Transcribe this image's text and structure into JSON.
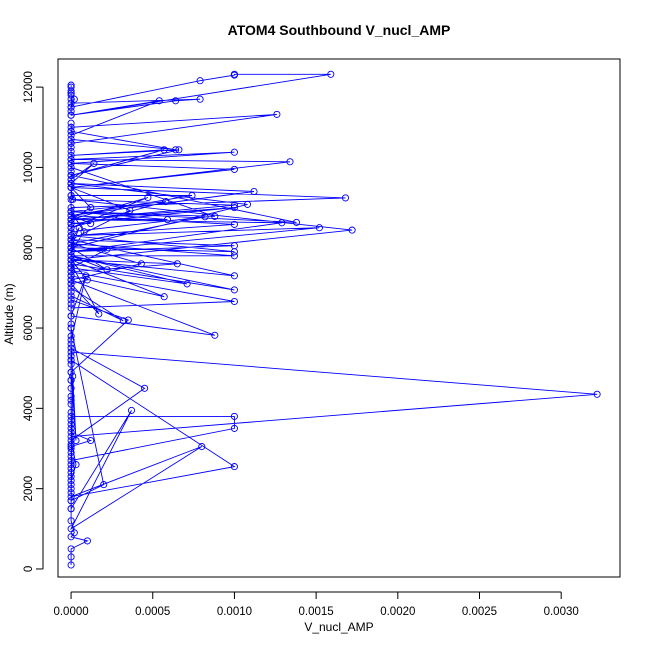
{
  "chart_data": {
    "type": "line",
    "title": "ATOM4 Southbound V_nucl_AMP",
    "xlabel": "V_nucl_AMP",
    "ylabel": "Altitude (m)",
    "xlim": [
      -8e-05,
      0.00336
    ],
    "ylim": [
      -200,
      12700
    ],
    "xticks": [
      0.0,
      0.0005,
      0.001,
      0.0015,
      0.002,
      0.0025,
      0.003
    ],
    "xtick_labels": [
      "0.0000",
      "0.0005",
      "0.0010",
      "0.0015",
      "0.0020",
      "0.0025",
      "0.0030"
    ],
    "yticks": [
      0,
      2000,
      4000,
      6000,
      8000,
      10000,
      12000
    ],
    "ytick_labels": [
      "0",
      "2000",
      "4000",
      "6000",
      "8000",
      "10000",
      "12000"
    ],
    "grid": false,
    "legend": "none",
    "series_color": "#0000ff",
    "series": [
      {
        "x": [
          0.0,
          0.0,
          0.0,
          0.0001,
          0.0,
          2e-05,
          0.0,
          0.0,
          0.0,
          0.0,
          0.0,
          0.0,
          0.0,
          0.0,
          0.0,
          0.00012,
          0.0,
          0.0,
          0.0,
          0.0,
          0.0,
          0.0,
          0.0,
          0.0,
          0.0,
          0.0,
          0.0,
          0.00045,
          0.0,
          3e-05,
          0.0,
          0.0,
          0.0,
          0.0,
          0.0,
          0.0,
          0.0,
          0.001,
          0.0,
          0.0008,
          0.0,
          0.00037,
          0.0,
          1e-05,
          0.0,
          0.0,
          0.0,
          0.0,
          0.0,
          0.001,
          0.001,
          0.0,
          0.0,
          0.00322,
          0.0,
          0.0,
          9e-05,
          0.0,
          0.0,
          0.0002,
          0.0,
          0.0,
          0.0,
          0.0,
          0.0,
          0.0,
          0.00088,
          0.0,
          0.0,
          0.00035,
          0.0,
          3e-05,
          0.0,
          0.0,
          0.0,
          0.00032,
          0.0,
          0.0,
          0.00017,
          0.0,
          0.0,
          0.00057,
          0.0,
          0.0,
          0.0,
          0.001,
          0.0,
          0.0,
          0.0,
          0.001,
          0.0,
          0.00071,
          0.0,
          0.0,
          0.0,
          0.0,
          0.001,
          0.0,
          0.0,
          0.0001,
          0.0,
          0.00065,
          0.0,
          0.0,
          0.001,
          0.0,
          0.00043,
          0.0,
          0.0,
          0.001,
          0.0,
          0.0,
          0.0,
          0.00022,
          0.0,
          5e-05,
          0.0,
          0.001,
          0.0,
          0.00022,
          0.0,
          0.0,
          0.0,
          0.00129,
          0.0,
          0.0,
          0.0,
          0.00172,
          0.0,
          0.0,
          0.00012,
          0.0,
          0.001,
          0.0,
          0.00152,
          0.0,
          8e-05,
          0.0,
          0.00058,
          0.0,
          0.0,
          0.0,
          0.00036,
          0.0,
          0.0,
          0.00082,
          0.0,
          0.0,
          0.001,
          0.0,
          0.00047,
          0.0,
          0.0,
          0.00108,
          0.0,
          0.0,
          0.00012,
          0.0,
          1e-05,
          0.001,
          0.0,
          0.00059,
          0.0,
          0.0,
          0.00168,
          0.0,
          0.0,
          0.0,
          0.00074,
          0.0,
          0.00112,
          0.0,
          0.0,
          0.0,
          0.0,
          0.0,
          0.00138,
          0.0,
          0.00088,
          0.0,
          0.0,
          0.00014,
          0.0,
          0.0,
          0.00134,
          0.0,
          0.001,
          0.0,
          0.0,
          0.00057,
          0.0,
          0.00066,
          0.0,
          0.0,
          0.001,
          0.0,
          0.0,
          0.0,
          0.0,
          0.0,
          0.0,
          0.00064,
          0.0,
          0.0,
          0.0,
          0.00126,
          0.0,
          0.0,
          0.00054,
          0.0,
          0.00064,
          0.00079,
          0.0,
          0.0,
          0.0,
          0.0,
          2e-05,
          0.0,
          0.00079,
          0.001,
          0.001,
          0.00159,
          0.0,
          0.0,
          0.0,
          0.0,
          0.0,
          0.0
        ],
        "y": [
          100,
          300,
          500,
          700,
          800,
          900,
          1200,
          1500,
          1700,
          1900,
          2100,
          2400,
          2600,
          2900,
          3050,
          3200,
          3400,
          3600,
          3900,
          4100,
          4300,
          4500,
          4700,
          4900,
          5100,
          5300,
          5500,
          4500,
          3200,
          2600,
          2200,
          2800,
          3100,
          3700,
          4200,
          4700,
          5200,
          2550,
          1800,
          3050,
          1000,
          3950,
          1500,
          4800,
          2000,
          2500,
          3000,
          3500,
          3800,
          3800,
          3500,
          2700,
          3300,
          4350,
          5400,
          5700,
          7300,
          6300,
          6000,
          2100,
          1700,
          2300,
          5200,
          5800,
          6000,
          6300,
          5820,
          7200,
          6700,
          6200,
          4900,
          3200,
          5600,
          6100,
          6800,
          6180,
          7000,
          7600,
          6350,
          7100,
          7700,
          6780,
          7300,
          6900,
          6500,
          6660,
          7400,
          6600,
          7600,
          6950,
          7800,
          7100,
          7500,
          8000,
          7300,
          7700,
          7300,
          8200,
          7100,
          7200,
          7700,
          7600,
          7400,
          7800,
          7800,
          8100,
          7600,
          7200,
          8300,
          7900,
          8000,
          7500,
          7800,
          7450,
          8000,
          8500,
          8200,
          8050,
          7900,
          7960,
          7500,
          8200,
          8700,
          8620,
          7900,
          8300,
          9200,
          8440,
          7700,
          8600,
          8600,
          8800,
          8580,
          8300,
          8500,
          7900,
          8400,
          8900,
          9150,
          8500,
          8600,
          9500,
          8930,
          8200,
          8400,
          8770,
          8100,
          8600,
          9000,
          8700,
          9250,
          8500,
          9600,
          9080,
          8000,
          8700,
          9000,
          9500,
          9200,
          9060,
          8700,
          8700,
          8900,
          9500,
          9240,
          9000,
          9600,
          9300,
          9300,
          8800,
          9400,
          9600,
          9700,
          9300,
          9900,
          9800,
          8630,
          8900,
          8780,
          10000,
          9600,
          10100,
          9700,
          10200,
          10140,
          9500,
          9950,
          10100,
          9800,
          10440,
          10300,
          10440,
          9800,
          10200,
          10380,
          10100,
          10400,
          10600,
          10500,
          10900,
          10700,
          10440,
          10900,
          11100,
          10600,
          11320,
          11000,
          10800,
          11660,
          11300,
          11660,
          11700,
          11600,
          11850,
          11400,
          11700,
          11700,
          11500,
          12160,
          12300,
          12320,
          12320,
          11300,
          11500,
          11800,
          11900,
          12000,
          12050
        ]
      }
    ]
  }
}
